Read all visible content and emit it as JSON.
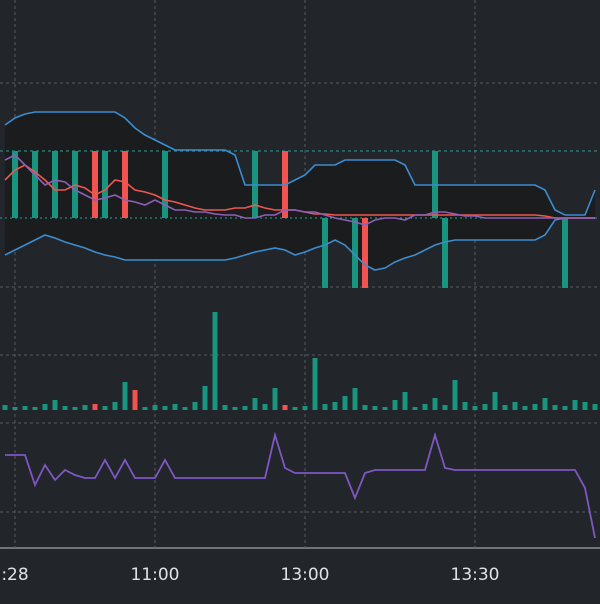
{
  "chart_data": [
    {
      "type": "candlestick",
      "categories": [
        null,
        ":28",
        null,
        null,
        null,
        null,
        null,
        null,
        null,
        null,
        null,
        null,
        null,
        null,
        null,
        "11:00",
        null,
        null,
        null,
        null,
        null,
        null,
        null,
        null,
        null,
        null,
        null,
        null,
        null,
        null,
        "13:00",
        null,
        null,
        null,
        null,
        null,
        null,
        null,
        null,
        null,
        null,
        null,
        null,
        null,
        null,
        null,
        null,
        "13:30",
        null,
        null,
        null,
        null,
        null,
        null,
        null,
        null,
        null,
        null,
        null,
        null
      ],
      "open": [
        null,
        72,
        null,
        72,
        null,
        72,
        null,
        72,
        null,
        139,
        72,
        null,
        139,
        null,
        null,
        null,
        72,
        null,
        null,
        null,
        null,
        null,
        null,
        null,
        null,
        72,
        null,
        null,
        139,
        null,
        null,
        null,
        2,
        null,
        null,
        2,
        72,
        null,
        null,
        null,
        null,
        null,
        null,
        72,
        2,
        null,
        null,
        null,
        null,
        null,
        null,
        null,
        null,
        null,
        null,
        null,
        2,
        null,
        null,
        null
      ],
      "close": [
        null,
        139,
        null,
        139,
        null,
        139,
        null,
        139,
        null,
        72,
        139,
        null,
        72,
        null,
        null,
        null,
        139,
        null,
        null,
        null,
        null,
        null,
        null,
        null,
        null,
        139,
        null,
        null,
        72,
        null,
        null,
        null,
        72,
        null,
        null,
        72,
        2,
        null,
        null,
        null,
        null,
        null,
        null,
        139,
        72,
        null,
        null,
        null,
        null,
        null,
        null,
        null,
        null,
        null,
        null,
        null,
        72,
        null,
        null,
        null
      ],
      "up_color": "#18947f",
      "down_color": "#f05350",
      "ylim": [
        0,
        290
      ],
      "series": [
        {
          "color": "#3d8ccf",
          "values": [
            165,
            172,
            176,
            178,
            178,
            178,
            178,
            178,
            178,
            178,
            178,
            178,
            172,
            162,
            155,
            150,
            145,
            140,
            140,
            140,
            140,
            140,
            140,
            135,
            105,
            105,
            105,
            105,
            105,
            110,
            115,
            125,
            125,
            125,
            130,
            130,
            130,
            130,
            130,
            130,
            125,
            105,
            105,
            105,
            105,
            105,
            105,
            105,
            105,
            105,
            105,
            105,
            105,
            105,
            100,
            80,
            75,
            75,
            75,
            100
          ]
        },
        {
          "color": "#3d8ccf",
          "values": [
            35,
            40,
            45,
            50,
            55,
            52,
            48,
            45,
            42,
            38,
            35,
            33,
            30,
            30,
            30,
            30,
            30,
            30,
            30,
            30,
            30,
            30,
            30,
            32,
            35,
            38,
            40,
            42,
            40,
            35,
            38,
            42,
            45,
            50,
            45,
            35,
            25,
            20,
            22,
            28,
            32,
            35,
            40,
            45,
            48,
            50,
            50,
            50,
            50,
            50,
            50,
            50,
            50,
            50,
            55,
            70,
            72,
            72,
            72,
            72
          ]
        },
        {
          "color": "#f0564f",
          "values": [
            110,
            120,
            125,
            118,
            110,
            100,
            100,
            105,
            102,
            95,
            100,
            110,
            108,
            100,
            98,
            95,
            90,
            88,
            85,
            82,
            80,
            80,
            80,
            82,
            82,
            85,
            82,
            80,
            80,
            80,
            78,
            76,
            76,
            75,
            75,
            75,
            75,
            75,
            75,
            75,
            75,
            75,
            75,
            75,
            75,
            75,
            75,
            75,
            75,
            75,
            75,
            75,
            75,
            75,
            74,
            72,
            72,
            72,
            72,
            72
          ]
        },
        {
          "color": "#8e5fb8",
          "values": [
            130,
            135,
            125,
            115,
            105,
            110,
            108,
            100,
            95,
            90,
            92,
            95,
            90,
            88,
            85,
            90,
            85,
            80,
            80,
            78,
            78,
            76,
            75,
            75,
            72,
            72,
            75,
            75,
            80,
            80,
            78,
            78,
            75,
            72,
            70,
            68,
            65,
            70,
            72,
            72,
            70,
            75,
            75,
            78,
            78,
            76,
            74,
            74,
            72,
            72,
            72,
            72,
            72,
            72,
            72,
            72,
            72,
            72,
            72,
            72
          ]
        }
      ]
    },
    {
      "type": "bar",
      "values": [
        5,
        3,
        4,
        3,
        6,
        10,
        4,
        3,
        5,
        6,
        4,
        8,
        28,
        20,
        3,
        5,
        4,
        6,
        3,
        8,
        24,
        98,
        5,
        3,
        4,
        12,
        6,
        22,
        5,
        3,
        4,
        52,
        6,
        8,
        14,
        22,
        5,
        4,
        3,
        10,
        18,
        3,
        6,
        12,
        5,
        30,
        8,
        4,
        6,
        18,
        5,
        8,
        4,
        6,
        12,
        5,
        4,
        10,
        8,
        6
      ],
      "color": "#18947f",
      "down_color": "#f05350",
      "down": [
        9,
        13,
        28
      ],
      "ylim": [
        0,
        120
      ]
    },
    {
      "type": "line",
      "values": [
        93,
        93,
        93,
        63,
        83,
        68,
        78,
        73,
        70,
        70,
        88,
        70,
        88,
        70,
        70,
        70,
        88,
        70,
        70,
        70,
        70,
        70,
        70,
        70,
        70,
        70,
        70,
        113,
        80,
        75,
        75,
        75,
        75,
        75,
        75,
        50,
        75,
        78,
        78,
        78,
        78,
        78,
        78,
        113,
        80,
        78,
        78,
        78,
        78,
        78,
        78,
        78,
        78,
        78,
        78,
        78,
        78,
        78,
        60,
        10
      ],
      "color": "#7e57c2",
      "ylim": [
        0,
        123
      ]
    }
  ]
}
